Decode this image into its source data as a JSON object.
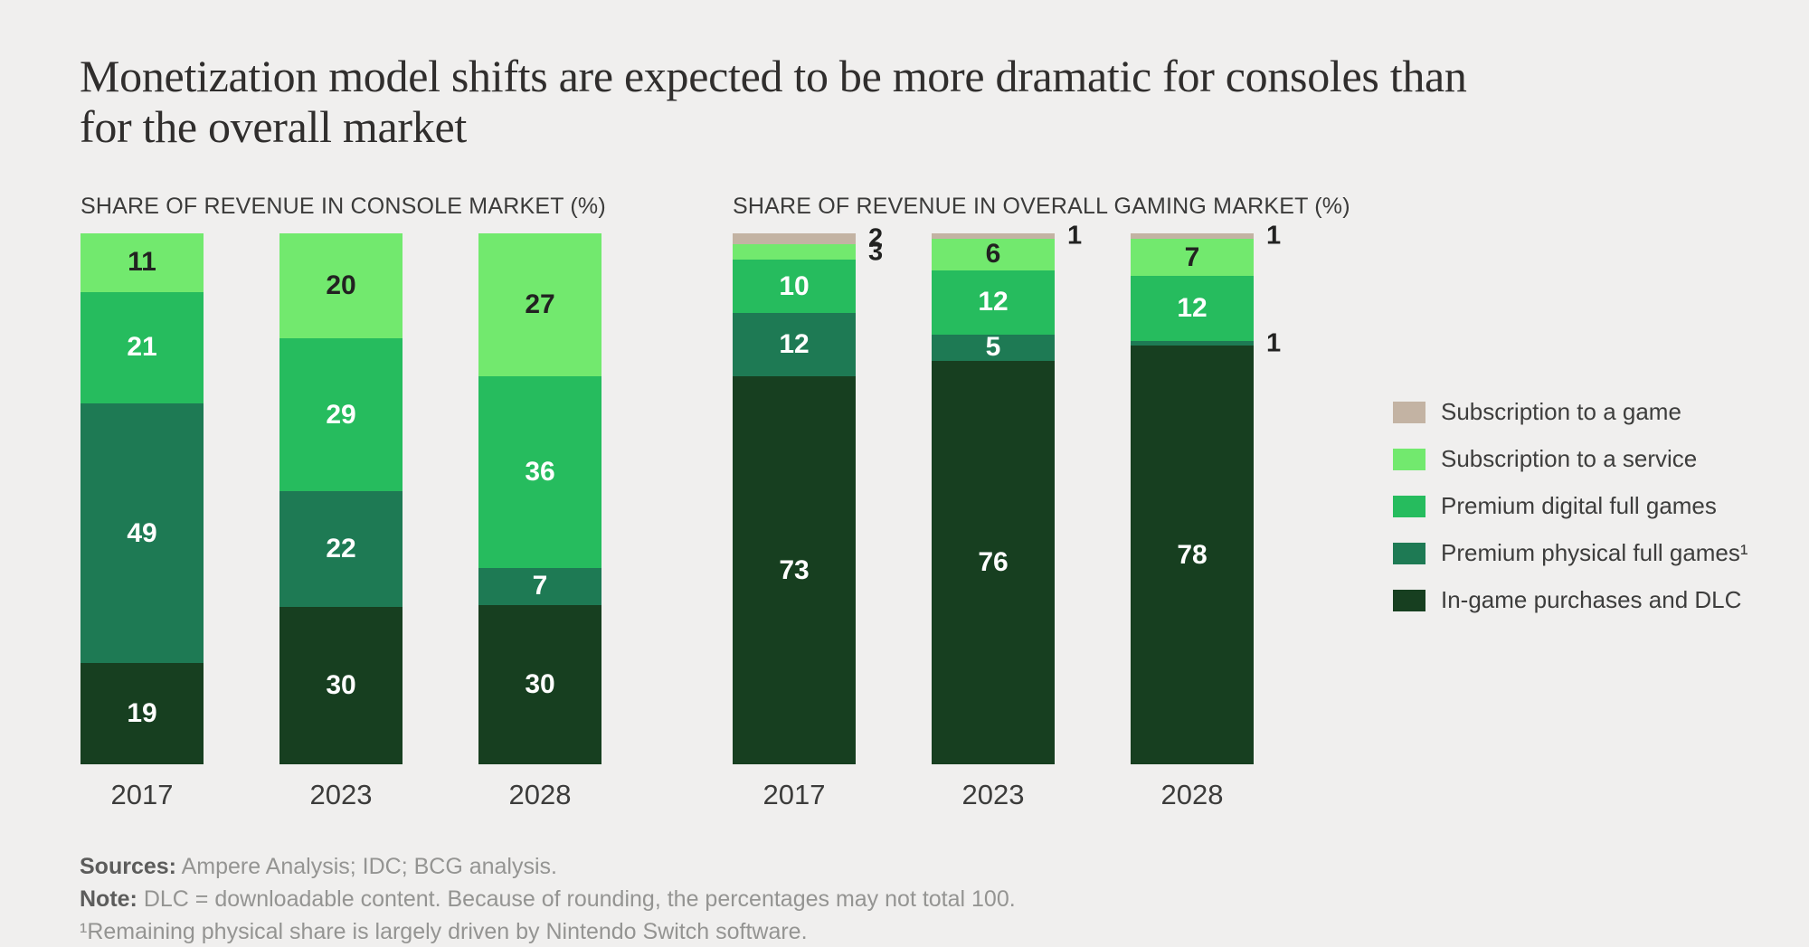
{
  "title": {
    "line1": "Monetization model shifts are expected to be more dramatic for consoles than",
    "line2": "for the overall market",
    "full": "Monetization model shifts are expected to be more dramatic for consoles than for the overall market"
  },
  "palette": {
    "game": "#c3b3a3",
    "service": "#72e96e",
    "digital": "#26bc5e",
    "physical": "#1e7a54",
    "ingame": "#173f20"
  },
  "background_color": "#f0efee",
  "legend": {
    "position": "right",
    "items": [
      {
        "key": "game",
        "label": "Subscription to a game"
      },
      {
        "key": "service",
        "label": "Subscription to a service"
      },
      {
        "key": "digital",
        "label": "Premium digital full games"
      },
      {
        "key": "physical",
        "label": "Premium physical full games¹"
      },
      {
        "key": "ingame",
        "label": "In-game purchases and DLC"
      }
    ]
  },
  "chart_data": [
    {
      "type": "bar",
      "subtype": "stacked-100",
      "key": "console",
      "heading": "SHARE OF REVENUE IN CONSOLE MARKET (%)",
      "categories": [
        "2017",
        "2023",
        "2028"
      ],
      "ylim": [
        0,
        100
      ],
      "grid": false,
      "series_top_to_bottom": [
        "Subscription to a service",
        "Premium digital full games",
        "Premium physical full games",
        "In-game purchases and DLC"
      ],
      "bars": [
        {
          "year": "2017",
          "segments": [
            {
              "series": "Subscription to a service",
              "color": "service",
              "value": 11,
              "label": "inside",
              "text": "dark"
            },
            {
              "series": "Premium digital full games",
              "color": "digital",
              "value": 21,
              "label": "inside",
              "text": "light"
            },
            {
              "series": "Premium physical full games",
              "color": "physical",
              "value": 49,
              "label": "inside",
              "text": "light"
            },
            {
              "series": "In-game purchases and DLC",
              "color": "ingame",
              "value": 19,
              "label": "inside",
              "text": "light"
            }
          ]
        },
        {
          "year": "2023",
          "segments": [
            {
              "series": "Subscription to a service",
              "color": "service",
              "value": 20,
              "label": "inside",
              "text": "dark"
            },
            {
              "series": "Premium digital full games",
              "color": "digital",
              "value": 29,
              "label": "inside",
              "text": "light"
            },
            {
              "series": "Premium physical full games",
              "color": "physical",
              "value": 22,
              "label": "inside",
              "text": "light"
            },
            {
              "series": "In-game purchases and DLC",
              "color": "ingame",
              "value": 30,
              "label": "inside",
              "text": "light"
            }
          ]
        },
        {
          "year": "2028",
          "segments": [
            {
              "series": "Subscription to a service",
              "color": "service",
              "value": 27,
              "label": "inside",
              "text": "dark"
            },
            {
              "series": "Premium digital full games",
              "color": "digital",
              "value": 36,
              "label": "inside",
              "text": "light"
            },
            {
              "series": "Premium physical full games",
              "color": "physical",
              "value": 7,
              "label": "inside",
              "text": "light"
            },
            {
              "series": "In-game purchases and DLC",
              "color": "ingame",
              "value": 30,
              "label": "inside",
              "text": "light"
            }
          ]
        }
      ]
    },
    {
      "type": "bar",
      "subtype": "stacked-100",
      "key": "overall",
      "heading": "SHARE OF REVENUE IN OVERALL GAMING MARKET (%)",
      "categories": [
        "2017",
        "2023",
        "2028"
      ],
      "ylim": [
        0,
        100
      ],
      "grid": false,
      "series_top_to_bottom": [
        "Subscription to a game",
        "Subscription to a service",
        "Premium digital full games",
        "Premium physical full games",
        "In-game purchases and DLC"
      ],
      "bars": [
        {
          "year": "2017",
          "segments": [
            {
              "series": "Subscription to a game",
              "color": "game",
              "value": 2,
              "label": "outside",
              "text": "dark"
            },
            {
              "series": "Subscription to a service",
              "color": "service",
              "value": 3,
              "label": "outside",
              "text": "dark"
            },
            {
              "series": "Premium digital full games",
              "color": "digital",
              "value": 10,
              "label": "inside",
              "text": "light"
            },
            {
              "series": "Premium physical full games",
              "color": "physical",
              "value": 12,
              "label": "inside",
              "text": "light"
            },
            {
              "series": "In-game purchases and DLC",
              "color": "ingame",
              "value": 73,
              "label": "inside",
              "text": "light"
            }
          ]
        },
        {
          "year": "2023",
          "segments": [
            {
              "series": "Subscription to a game",
              "color": "game",
              "value": 1,
              "label": "outside",
              "text": "dark"
            },
            {
              "series": "Subscription to a service",
              "color": "service",
              "value": 6,
              "label": "inside",
              "text": "dark"
            },
            {
              "series": "Premium digital full games",
              "color": "digital",
              "value": 12,
              "label": "inside",
              "text": "light"
            },
            {
              "series": "Premium physical full games",
              "color": "physical",
              "value": 5,
              "label": "inside",
              "text": "light"
            },
            {
              "series": "In-game purchases and DLC",
              "color": "ingame",
              "value": 76,
              "label": "inside",
              "text": "light"
            }
          ]
        },
        {
          "year": "2028",
          "segments": [
            {
              "series": "Subscription to a game",
              "color": "game",
              "value": 1,
              "label": "outside",
              "text": "dark"
            },
            {
              "series": "Subscription to a service",
              "color": "service",
              "value": 7,
              "label": "inside",
              "text": "dark"
            },
            {
              "series": "Premium digital full games",
              "color": "digital",
              "value": 12,
              "label": "inside",
              "text": "light"
            },
            {
              "series": "Premium physical full games",
              "color": "physical",
              "value": 1,
              "label": "outside",
              "text": "dark"
            },
            {
              "series": "In-game purchases and DLC",
              "color": "ingame",
              "value": 78,
              "label": "inside",
              "text": "light"
            }
          ]
        }
      ]
    }
  ],
  "footer": {
    "sources_label": "Sources:",
    "sources_text": "Ampere Analysis; IDC; BCG analysis.",
    "note_label": "Note:",
    "note_text": "DLC = downloadable content. Because of rounding, the percentages may not total 100.",
    "footnote": "¹Remaining physical share is largely driven by Nintendo Switch software."
  }
}
